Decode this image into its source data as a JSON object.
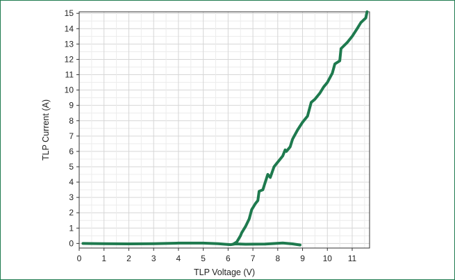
{
  "chart_data": {
    "type": "line",
    "xlabel": "TLP Voltage (V)",
    "ylabel": "TLP Current (A)",
    "xlim": [
      0,
      11.7
    ],
    "ylim": [
      -0.3,
      15.1
    ],
    "x_ticks": [
      0,
      1,
      2,
      3,
      4,
      5,
      6,
      7,
      8,
      9,
      10,
      11
    ],
    "y_ticks": [
      0,
      1,
      2,
      3,
      4,
      5,
      6,
      7,
      8,
      9,
      10,
      11,
      12,
      13,
      14,
      15
    ],
    "grid": true,
    "line_color": "#1e7a4e",
    "series": [
      {
        "name": "",
        "points": [
          [
            0.15,
            0.0
          ],
          [
            1.0,
            -0.02
          ],
          [
            2.0,
            -0.03
          ],
          [
            3.0,
            -0.02
          ],
          [
            4.0,
            0.02
          ],
          [
            5.0,
            0.02
          ],
          [
            5.6,
            -0.02
          ],
          [
            6.1,
            -0.08
          ],
          [
            6.3,
            -0.03
          ],
          [
            6.7,
            -0.05
          ],
          [
            7.5,
            -0.04
          ],
          [
            8.2,
            0.03
          ],
          [
            8.6,
            -0.03
          ],
          [
            8.9,
            -0.1
          ]
        ]
      },
      {
        "name": "",
        "points": [
          [
            6.2,
            -0.05
          ],
          [
            6.35,
            0.1
          ],
          [
            6.5,
            0.5
          ],
          [
            6.55,
            0.7
          ],
          [
            6.7,
            1.1
          ],
          [
            6.85,
            1.6
          ],
          [
            6.95,
            2.2
          ],
          [
            7.1,
            2.6
          ],
          [
            7.2,
            2.8
          ],
          [
            7.25,
            3.4
          ],
          [
            7.4,
            3.5
          ],
          [
            7.5,
            4.0
          ],
          [
            7.6,
            4.5
          ],
          [
            7.7,
            4.3
          ],
          [
            7.85,
            5.0
          ],
          [
            8.0,
            5.3
          ],
          [
            8.2,
            5.7
          ],
          [
            8.3,
            6.1
          ],
          [
            8.35,
            6.0
          ],
          [
            8.5,
            6.3
          ],
          [
            8.6,
            6.8
          ],
          [
            8.8,
            7.4
          ],
          [
            9.0,
            7.9
          ],
          [
            9.2,
            8.3
          ],
          [
            9.35,
            9.2
          ],
          [
            9.5,
            9.4
          ],
          [
            9.7,
            9.8
          ],
          [
            9.85,
            10.2
          ],
          [
            10.0,
            10.5
          ],
          [
            10.2,
            11.1
          ],
          [
            10.3,
            11.7
          ],
          [
            10.5,
            11.9
          ],
          [
            10.55,
            12.7
          ],
          [
            10.8,
            13.1
          ],
          [
            11.0,
            13.5
          ],
          [
            11.2,
            14.0
          ],
          [
            11.35,
            14.4
          ],
          [
            11.55,
            14.7
          ],
          [
            11.6,
            15.1
          ]
        ]
      }
    ]
  }
}
